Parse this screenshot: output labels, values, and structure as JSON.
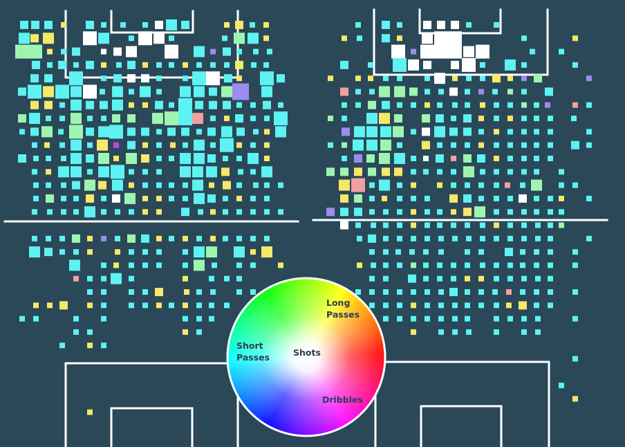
{
  "chart_data": {
    "type": "heatmap",
    "legend": {
      "labels": {
        "long": "Long\nPasses",
        "short": "Short\nPasses",
        "center": "Shots",
        "dribbles": "Dribbles"
      }
    },
    "palette": {
      "background": "#2a4858",
      "lines": "#ffffff",
      "shots": "#ffffff",
      "short_passes": "#5ef2f2",
      "short_long_mix": "#9ff5b0",
      "long_passes": "#f5e86a",
      "dribbles": "#c840e0",
      "mixed_purple": "#9b8cf0",
      "mixed_pink": "#f0a0a0"
    },
    "panels": [
      {
        "name": "left",
        "cells": "35,3,c,0;51,3,c,0;70,3,c,0;92,2,y,0;130,3,c,0;150,2,c,0;178,2,c,0;210,2,c,0;230,3,w,0;248,4,c,0;268,3,c,0;328,2,y,0;346,3,y,0;365,2,c,0;385,2,y,0;35,4,c,1;50,3,y,1;70,4,y,1;130,5,w,1;150,4,c,1;190,2,c,1;210,5,w,1;230,4,w,1;248,2,c,1;325,2,c,1;346,4,m,1;366,4,c,1;385,2,y,1;32,5,m,2;51,5,m,2;72,2,y,2;92,2,c,2;110,3,c,2;150,2,w,2;170,3,w,2;190,4,w,2;248,5,w,2;288,4,c,2;308,2,p,2;328,3,c,2;346,2,c,2;370,2,c,2;390,2,c,2;52,3,c,3;72,2,c,3;90,3,c,3;110,2,c,3;130,3,c,3;150,2,y,3;172,2,c,3;190,3,c,3;210,2,y,3;230,2,c,3;248,2,c,3;268,2,y,3;288,2,c,3;308,2,c,3;328,2,c,3;346,3,y,3;367,2,c,3;385,2,c,3;50,3,c,4;70,3,c,4;110,5,c,4;150,2,c,4;170,3,c,4;190,3,w,4;210,3,w,4;230,2,c,4;268,2,c,4;288,5,c,4;308,5,w,4;330,3,c,4;346,2,y,4;386,5,c,4;406,3,c,4;32,3,c,5;50,5,c,5;70,4,y,5;90,5,c,5;110,4,c,5;130,5,w,5;148,2,c,5;170,4,c,5;190,2,c,5;210,4,c,5;230,2,c,5;268,4,c,5;288,4,c,5;308,3,c,5;328,4,m,5;348,6,p,5;386,4,c,5;50,3,y,6;70,3,y,6;90,2,c,6;110,4,c,6;130,3,c,6;150,3,c,6;170,4,c,6;190,2,y,6;210,2,y,6;230,3,c,6;248,2,c,6;268,5,c,6;288,3,c,6;308,3,c,6;328,3,c,6;346,2,c,6;366,2,c,6;386,3,c,6;406,2,c,6;32,3,m,7;50,4,c,7;70,2,c,7;90,2,c,7;110,4,m,7;130,2,c,7;150,2,c,7;168,3,m,7;190,3,m,7;228,4,m,7;248,5,m,7;268,5,c,7;286,4,q,7;308,2,c,7;328,2,y,7;346,3,c,7;366,2,c,7;386,2,c,7;406,5,c,7;32,2,c,8;50,3,c,8;68,4,m,8;88,2,c,8;110,5,m,8;130,3,c,8;150,4,c,8;168,5,c,8;190,3,c,8;210,3,c,8;230,2,c,8;248,3,c,8;268,3,c,8;288,2,c,8;306,3,c,8;328,4,c,8;348,3,c,8;370,2,c,8;386,2,y,8;406,4,c,8;50,2,c,9;68,2,y,9;90,2,c,9;110,4,c,9;130,2,c,9;148,4,y,9;168,2,d,9;190,3,c,9;210,2,y,9;230,2,c,9;250,2,y,9;268,2,c,9;288,4,c,9;308,2,c,9;328,5,c,9;346,2,y,9;366,2,c,9;386,2,y,9;32,3,c,10;52,2,c,10;70,2,c,10;92,2,c,10;110,4,c,10;130,3,c,10;150,4,m,10;168,2,y,10;190,4,m,10;210,3,y,10;230,2,c,10;248,2,c,10;268,4,c,10;288,4,c,10;306,3,c,10;326,2,c,10;346,2,c,10;366,4,c,10;386,2,y,10;50,2,c,11;70,2,y,11;92,4,c,11;110,4,c,11;130,2,c,11;150,4,c,11;170,5,c,11;190,2,c,11;210,2,c,11;230,2,c,11;268,4,c,11;286,4,c,11;306,4,c,11;326,3,y,11;348,2,c,11;366,2,c,11;386,4,c,11;52,2,c,12;70,2,c,12;92,2,c,12;110,3,c,12;130,4,m,12;148,3,y,12;170,4,c,12;190,2,y,12;210,2,c,12;230,2,c,12;248,2,c,12;268,2,c,12;286,4,c,12;306,2,y,12;328,3,y,12;346,2,c,12;370,2,c,12;386,2,c,12;406,2,c,12;52,2,c,13;72,3,m,13;92,2,c,13;110,2,c,13;130,3,y,13;150,2,c,13;168,3,w,13;188,4,m,13;210,2,y,13;230,2,y,13;248,2,c,13;268,2,c,13;288,4,c,13;306,3,c,13;326,2,c,13;346,2,y,13;366,2,c,13;386,2,c,13;50,2,c,14;72,2,c,14;92,2,c,14;110,2,c,14;130,4,c,14;150,2,c,14;170,2,c,14;190,2,c,14;210,2,y,14;230,2,y,14;268,3,c,14;290,2,c,14;308,2,y,14;326,2,c,14;346,2,c,14;366,2,c,14;386,2,c,14;406,2,c,14;50,2,c,16;70,2,c,16;90,2,c,16;110,3,m,16;130,2,y,16;150,2,p,16;170,2,c,16;190,3,m,16;210,3,c,16;230,2,y,16;248,2,c,16;268,2,y,16;288,2,c,16;308,2,y,16;326,2,c,16;346,2,c,16;366,2,c,16;386,2,c,16;50,4,c,17;70,3,c,17;90,2,c,17;110,2,c,17;130,2,y,17;170,2,y,17;190,2,c,17;210,2,c,17;230,2,c,17;268,2,c,17;288,4,c,17;306,4,m,17;346,4,c,17;366,2,y,17;386,4,y,17;108,4,c,18;150,2,c,18;168,2,y,18;190,2,c,18;210,2,c,18;230,2,c,18;268,2,c,18;288,4,m,18;310,2,c,18;346,2,c,18;366,2,c,18;406,2,y,18;110,2,q,19;130,2,c,19;150,2,c,19;168,4,c,19;190,2,c,19;268,2,y,19;306,2,c,19;328,2,c,19;346,2,c,19;130,2,c,20;150,2,c,20;190,2,c,20;210,2,c,20;230,3,y,20;270,2,y,20;288,2,c,20;308,2,c,20;346,2,c,20;366,2,c,20;52,2,y,21;72,2,y,21;92,3,y,21;130,2,y,21;150,2,c,21;190,2,c,21;210,2,c,21;230,2,y,21;248,2,c,21;268,2,y,21;288,2,c,21;306,2,c,21;328,2,c,21;32,2,c,22;52,2,c,22;110,2,c,22;150,2,c,22;268,2,c,22;288,2,c,22;306,2,c,22;110,2,c,23;130,2,c,23;268,2,y,23;288,2,c,23;90,2,c,24;130,2,y,24;150,2,c,24;130,2,y,29"
      },
      {
        "name": "right",
        "cells": "518,2,c,0;558,3,c,0;578,2,c,0;618,3,w,0;638,3,w,0;658,3,w,0;718,2,c,0;678,2,c,0;498,2,y,1;520,2,c,1;558,3,c,1;578,2,y,1;618,4,w,1;638,5,w,1;658,5,w,1;758,2,c,1;832,2,y,1;576,5,w,2;598,2,p,2;618,5,w,2;638,5,w,2;658,5,w,2;678,4,w,2;698,5,w,2;770,2,c,2;812,2,c,2;498,3,c,3;536,2,c,3;578,5,c,3;598,4,w,3;618,3,w,3;658,3,w,3;678,5,w,3;698,2,c,3;738,4,c,3;758,2,c,3;832,2,c,3;478,2,y,4;518,2,y,4;536,2,y,4;558,2,c,4;578,2,c,4;618,2,c,4;636,4,w,4;658,2,y,4;678,2,c,4;698,2,c,4;718,3,y,4;738,2,y,4;758,2,p,4;778,3,m,4;852,2,p,4;498,3,q,5;518,2,c,5;538,2,c,5;556,4,m,5;578,4,m,5;598,3,m,5;618,2,c,5;638,2,c,5;656,3,w,5;676,2,c,5;696,2,p,5;716,2,c,5;738,2,m,5;758,2,c,5;794,3,c,5;498,2,c,6;518,2,c,6;538,3,m,6;558,3,c,6;578,2,c,6;598,2,c,6;618,2,y,6;636,2,c,6;658,2,c,6;676,2,c,6;698,2,y,6;718,2,c,6;738,2,c,6;758,2,m,6;776,2,c,6;792,2,p,6;832,2,q,6;852,2,c,6;478,2,m,7;498,2,c,7;538,4,c,7;556,4,y,7;576,3,m,7;616,3,m,7;636,3,c,7;656,2,c,7;676,3,c,7;696,2,y,7;718,2,c,7;738,2,y,7;758,2,c,7;776,2,c,7;796,2,c,7;830,2,c,7;500,3,p,8;520,4,c,8;538,4,c,8;558,4,c,8;576,4,m,8;598,2,c,8;616,3,w,8;636,4,c,8;656,3,c,8;676,3,c,8;696,2,c,8;718,2,y,8;738,2,c,8;758,2,c,8;776,2,c,8;796,2,c,8;852,2,c,8;478,2,c,9;498,2,m,9;518,4,c,9;538,4,c,9;558,4,m,9;578,2,c,9;616,3,y,9;636,2,c,9;656,2,c,9;676,2,c,9;696,2,y,9;718,2,c,9;738,2,c,9;758,2,c,9;776,2,c,9;796,2,c,9;832,3,c,9;852,2,c,9;498,2,c,10;518,3,p,10;536,3,m,10;556,4,m,10;578,4,c,10;598,2,c,10;616,2,w,10;636,3,c,10;656,2,q,10;676,3,m,10;696,3,c,10;718,2,y,10;738,2,c,10;758,2,c,10;776,2,c,10;796,2,c,10;478,3,m,11;498,3,m,11;518,3,y,11;538,3,m,11;558,3,y,11;576,3,y,11;598,2,c,11;616,2,c,11;636,2,c,11;656,2,c,11;678,4,m,11;698,2,c,11;718,2,c,11;738,2,c,11;758,2,c,11;776,2,c,11;812,2,c,11;498,4,y,12;518,5,q,12;538,2,c,12;556,4,c,12;578,2,c,12;598,2,y,12;636,2,y,12;656,2,c,12;676,2,c,12;696,2,c,12;718,2,c,12;734,2,q,12;756,2,c,12;776,4,m,12;812,2,c,12;832,2,c,12;498,3,y,13;518,3,m,13;538,2,c,13;556,2,y,13;578,2,c,13;598,2,c,13;618,2,c,13;656,3,y,13;676,3,c,13;696,2,c,13;718,2,c,13;738,2,c,13;756,3,w,13;776,2,c,13;796,2,c,13;812,2,y,13;852,2,c,13;478,3,p,14;498,3,c,14;518,3,c,14;538,2,c,14;558,2,c,14;578,2,c,14;598,2,y,14;618,2,c,14;636,2,c,14;656,2,y,14;676,3,y,14;694,4,m,14;718,2,c,14;738,2,c,14;758,2,c,14;776,2,c,14;796,2,c,14;812,2,c,14;498,3,w,15;518,2,c,15;540,2,c,15;558,2,c,15;578,2,c,15;598,2,y,15;618,2,c,15;636,2,c,15;656,2,c,15;676,2,c,15;698,2,c,15;718,2,y,15;738,2,c,15;758,2,c,15;778,2,c,15;796,2,c,15;812,2,m,15;520,2,c,16;538,3,c,16;558,2,c,16;578,2,c,16;598,2,c,16;618,2,c,16;638,2,c,16;658,2,c,16;678,2,c,16;698,2,c,16;718,2,c,16;738,2,c,16;758,2,c,16;778,2,c,16;796,2,c,16;852,2,c,16;538,2,c,17;558,2,c,17;576,2,c,17;596,2,c,17;616,2,c,17;638,2,c,17;676,2,c,17;696,2,c,17;736,3,c,17;756,2,c,17;776,2,c,17;796,2,c,17;832,2,c,17;520,2,y,18;540,2,c,18;558,2,c,18;578,2,c,18;598,2,m,18;616,2,c,18;636,2,c,18;656,2,c,18;676,2,c,18;698,2,c,18;718,2,c,18;738,2,c,18;756,2,c,18;776,2,c,18;796,2,c,18;832,2,c,18;538,2,c,19;558,2,c,19;596,3,c,19;616,2,c,19;636,2,c,19;656,2,c,19;676,2,y,19;696,2,y,19;718,2,c,19;738,2,c,19;758,2,c,19;778,2,c,19;796,2,c,19;518,2,c,20;538,2,c,20;558,2,c,20;578,2,c,20;598,2,c,20;618,2,c,20;638,2,c,20;656,3,c,20;676,2,c,20;696,2,c,20;716,2,c,20;736,2,q,20;756,2,c,20;776,2,c,20;796,2,c,20;832,2,c,20;538,2,c,21;558,2,c,21;578,2,c,21;598,2,y,21;618,2,c,21;638,2,c,21;658,2,c,21;676,2,c,21;696,2,c,21;718,2,c,21;736,2,y,21;756,3,y,21;776,2,c,21;796,2,c,21;558,2,c,22;578,2,c,22;598,2,c,22;618,2,c,22;638,2,c,22;658,2,c,22;676,2,c,22;718,2,c,22;738,2,c,22;758,2,c,22;778,2,c,22;832,2,c,22;598,2,y,23;638,2,c,23;658,2,c,23;678,2,c,23;718,2,c,23;758,2,c,23;778,2,c,23;832,2,c,25;812,2,c,27;832,2,y,28"
      }
    ]
  }
}
